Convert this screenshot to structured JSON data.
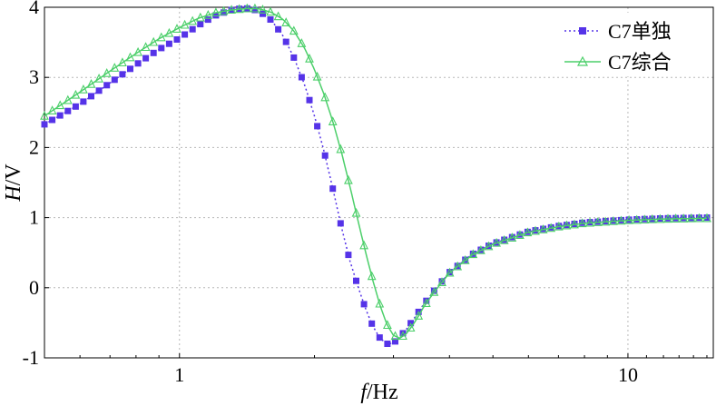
{
  "chart_data": {
    "type": "line",
    "title": "",
    "xlabel": "f/Hz",
    "xlabel_parts": {
      "var": "f",
      "unit": "/Hz"
    },
    "ylabel": "H/V",
    "ylabel_parts": {
      "var": "H",
      "unit": "/V"
    },
    "xscale": "log",
    "xlim": [
      0.5,
      15.5
    ],
    "ylim": [
      -1,
      4
    ],
    "xticks": [
      1,
      10
    ],
    "xtick_labels": [
      "1",
      "10"
    ],
    "yticks": [
      -1,
      0,
      1,
      2,
      3,
      4
    ],
    "ytick_labels": [
      "-1",
      "0",
      "1",
      "2",
      "3",
      "4"
    ],
    "grid": true,
    "legend_position": "top-right",
    "series": [
      {
        "name": "C7单独",
        "color": "#5533e8",
        "line_style": "dotted",
        "marker": "square",
        "x": [
          0.5,
          0.6,
          0.7,
          0.8,
          0.9,
          1.0,
          1.1,
          1.2,
          1.3,
          1.4,
          1.5,
          1.6,
          1.7,
          1.8,
          1.9,
          2.0,
          2.1,
          2.2,
          2.3,
          2.4,
          2.5,
          2.6,
          2.7,
          2.8,
          2.9,
          3.0,
          3.1,
          3.2,
          3.3,
          3.4,
          3.5,
          3.7,
          4.0,
          4.5,
          5.0,
          6.0,
          7.0,
          8.0,
          10.0,
          12.0,
          15.0
        ],
        "y": [
          2.33,
          2.62,
          2.92,
          3.18,
          3.4,
          3.56,
          3.74,
          3.88,
          3.96,
          3.99,
          3.95,
          3.82,
          3.6,
          3.28,
          2.9,
          2.45,
          1.95,
          1.4,
          0.85,
          0.38,
          0.02,
          -0.3,
          -0.55,
          -0.72,
          -0.8,
          -0.79,
          -0.7,
          -0.6,
          -0.48,
          -0.36,
          -0.24,
          -0.04,
          0.22,
          0.48,
          0.63,
          0.8,
          0.88,
          0.93,
          0.97,
          0.99,
          1.0
        ]
      },
      {
        "name": "C7综合",
        "color": "#4ccf6a",
        "line_style": "solid",
        "marker": "triangle",
        "x": [
          0.5,
          0.6,
          0.7,
          0.8,
          0.9,
          1.0,
          1.1,
          1.2,
          1.3,
          1.4,
          1.5,
          1.6,
          1.7,
          1.8,
          1.9,
          2.0,
          2.1,
          2.2,
          2.3,
          2.4,
          2.5,
          2.6,
          2.7,
          2.8,
          2.9,
          3.0,
          3.1,
          3.2,
          3.3,
          3.4,
          3.5,
          3.7,
          4.0,
          4.5,
          5.0,
          6.0,
          7.0,
          8.0,
          10.0,
          12.0,
          15.0
        ],
        "y": [
          2.45,
          2.79,
          3.09,
          3.34,
          3.55,
          3.71,
          3.84,
          3.92,
          3.96,
          3.98,
          3.98,
          3.93,
          3.83,
          3.66,
          3.42,
          3.11,
          2.76,
          2.36,
          1.92,
          1.44,
          0.96,
          0.51,
          0.1,
          -0.25,
          -0.52,
          -0.68,
          -0.72,
          -0.66,
          -0.55,
          -0.42,
          -0.28,
          -0.06,
          0.21,
          0.47,
          0.62,
          0.79,
          0.87,
          0.92,
          0.96,
          0.98,
          0.99
        ]
      }
    ]
  }
}
